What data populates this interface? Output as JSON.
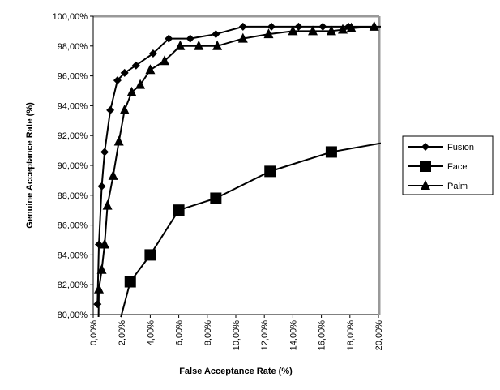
{
  "chart_data": {
    "type": "line",
    "x_label": "False Acceptance Rate (%)",
    "y_label": "Genuine Acceptance Rate (%)",
    "xlim": [
      0,
      20
    ],
    "ylim": [
      80,
      100
    ],
    "xticks": [
      {
        "value": 0,
        "label": "0,00%"
      },
      {
        "value": 2,
        "label": "2,00%"
      },
      {
        "value": 4,
        "label": "4,00%"
      },
      {
        "value": 6,
        "label": "6,00%"
      },
      {
        "value": 8,
        "label": "8,00%"
      },
      {
        "value": 10,
        "label": "10,00%"
      },
      {
        "value": 12,
        "label": "12,00%"
      },
      {
        "value": 14,
        "label": "14,00%"
      },
      {
        "value": 16,
        "label": "16,00%"
      },
      {
        "value": 18,
        "label": "18,00%"
      },
      {
        "value": 20,
        "label": "20,00%"
      }
    ],
    "yticks": [
      {
        "value": 80,
        "label": "80,00%"
      },
      {
        "value": 82,
        "label": "82,00%"
      },
      {
        "value": 84,
        "label": "84,00%"
      },
      {
        "value": 86,
        "label": "86,00%"
      },
      {
        "value": 88,
        "label": "88,00%"
      },
      {
        "value": 90,
        "label": "90,00%"
      },
      {
        "value": 92,
        "label": "92,00%"
      },
      {
        "value": 94,
        "label": "94,00%"
      },
      {
        "value": 96,
        "label": "96,00%"
      },
      {
        "value": 98,
        "label": "98,00%"
      },
      {
        "value": 100,
        "label": "100,00%"
      }
    ],
    "series": [
      {
        "name": "Fusion",
        "color": "#000000",
        "marker": "diamond",
        "x": [
          0.3,
          0.4,
          0.6,
          0.8,
          1.2,
          1.7,
          2.2,
          3.0,
          4.2,
          5.3,
          6.8,
          8.6,
          10.5,
          12.5,
          14.4,
          16.1,
          17.9,
          22
        ],
        "values": [
          80.7,
          84.7,
          88.6,
          90.9,
          93.7,
          95.7,
          96.2,
          96.7,
          97.5,
          98.5,
          98.5,
          98.8,
          99.3,
          99.3,
          99.3,
          99.3,
          99.3,
          99.3
        ]
      },
      {
        "name": "Face",
        "color": "#000000",
        "marker": "square",
        "x": [
          1.3,
          2.6,
          4.0,
          6.0,
          8.6,
          12.4,
          16.7,
          22
        ],
        "values": [
          77.5,
          82.2,
          84.0,
          87.0,
          87.8,
          89.6,
          90.9,
          91.8
        ]
      },
      {
        "name": "Palm",
        "color": "#000000",
        "marker": "triangle",
        "x": [
          0.35,
          0.4,
          0.6,
          0.8,
          1.0,
          1.4,
          1.8,
          2.2,
          2.7,
          3.3,
          4.0,
          5.0,
          6.1,
          7.4,
          8.7,
          10.5,
          12.3,
          14.0,
          15.4,
          16.7,
          17.5,
          18.1,
          19.7
        ],
        "values": [
          78.0,
          81.7,
          83.0,
          84.7,
          87.3,
          89.3,
          91.6,
          93.7,
          94.9,
          95.4,
          96.4,
          97.0,
          98.0,
          98.0,
          98.0,
          98.5,
          98.8,
          99.0,
          99.0,
          99.0,
          99.1,
          99.2,
          99.3
        ]
      }
    ]
  }
}
